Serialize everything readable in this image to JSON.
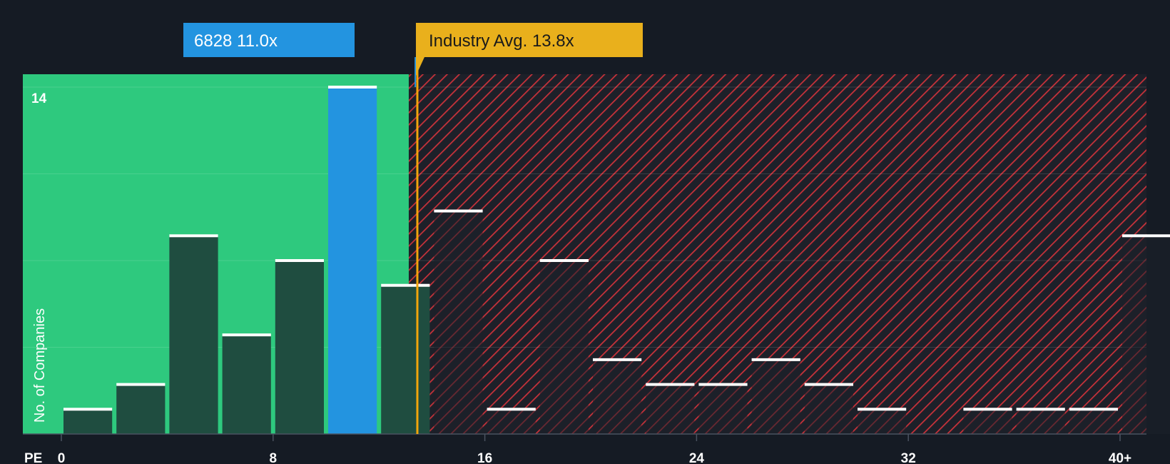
{
  "chart_data": {
    "type": "bar",
    "title": "",
    "xlabel": "PE",
    "ylabel": "No. of Companies",
    "x_tick_labels": [
      "0",
      "8",
      "16",
      "24",
      "32",
      "40+"
    ],
    "y_tick_labels": [
      "14"
    ],
    "ylim": [
      0,
      14.5
    ],
    "bin_width": 2,
    "bins": [
      {
        "x_start": 0,
        "value": 1
      },
      {
        "x_start": 2,
        "value": 2
      },
      {
        "x_start": 4,
        "value": 8
      },
      {
        "x_start": 6,
        "value": 4
      },
      {
        "x_start": 8,
        "value": 7
      },
      {
        "x_start": 10,
        "value": 14,
        "highlight": true
      },
      {
        "x_start": 12,
        "value": 6
      },
      {
        "x_start": 14,
        "value": 9
      },
      {
        "x_start": 16,
        "value": 1
      },
      {
        "x_start": 18,
        "value": 7
      },
      {
        "x_start": 20,
        "value": 3
      },
      {
        "x_start": 22,
        "value": 2
      },
      {
        "x_start": 24,
        "value": 2
      },
      {
        "x_start": 26,
        "value": 3
      },
      {
        "x_start": 28,
        "value": 2
      },
      {
        "x_start": 30,
        "value": 1
      },
      {
        "x_start": 32,
        "value": 0
      },
      {
        "x_start": 34,
        "value": 1
      },
      {
        "x_start": 36,
        "value": 1
      },
      {
        "x_start": 38,
        "value": 1
      },
      {
        "x_start": 40,
        "value": 8
      }
    ],
    "company": {
      "label": "6828 11.0x",
      "pe": 11.0
    },
    "industry": {
      "label": "Industry Avg. 13.8x",
      "pe": 13.8
    },
    "colors": {
      "background": "#151b24",
      "fair_zone": "#2ec97e",
      "over_zone_hatch": "#c8323a",
      "bar_dark": "#1f4d40",
      "bar_over": "#1c2029",
      "company_bar": "#2394e0",
      "industry_line": "#f2a50c",
      "industry_badge": "#e9b01c",
      "bar_cap": "#ffffff"
    }
  }
}
